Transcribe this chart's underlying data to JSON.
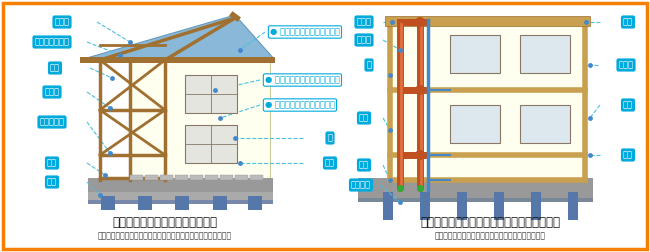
{
  "bg_color": "#ffffff",
  "border_color": "#f77f00",
  "border_linewidth": 2.5,
  "left_title": "木造（在来軸組工法）の戸建住宅",
  "left_subtitle": "（例）２階建ての場合の骨組み（小屋組、軸組、床組）等の構成",
  "right_title": "鉄筋コンクリート造（壁式工法）の共同住宅",
  "right_subtitle": "（例）２階建ての場合の骨組み（壁、床版）等の構成",
  "label_box_color": "#00aadd",
  "label_text_color": "#ffffff",
  "line_color": "#4cc0e0",
  "dot_color": "#4488cc",
  "rain_label_color": "#00aadd",
  "wood_color": "#a07030",
  "wall_color": "#fffff0",
  "wall_edge_color": "#cccc99",
  "roof_color": "#8ab8d8",
  "ground_color": "#999999",
  "foundation_color": "#7788aa",
  "pile_color": "#5577aa",
  "rc_wall_color": "#c8a050",
  "rc_pipe_color": "#c05020",
  "rc_pipe_highlight": "#e07040",
  "rc_blue_pipe_color": "#4488cc",
  "rc_green_dot": "#33aa33",
  "title_fontsize": 8.5,
  "subtitle_fontsize": 5.5,
  "label_fontsize": 6.0
}
